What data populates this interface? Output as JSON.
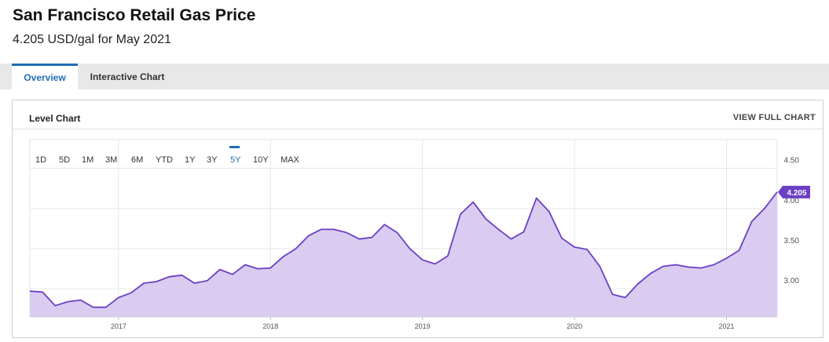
{
  "header": {
    "title": "San Francisco Retail Gas Price",
    "subtitle": "4.205 USD/gal for May 2021"
  },
  "tabs": [
    {
      "label": "Overview",
      "active": true
    },
    {
      "label": "Interactive Chart",
      "active": false
    }
  ],
  "panel": {
    "title": "Level Chart",
    "view_full": "VIEW FULL CHART"
  },
  "ranges": [
    "1D",
    "5D",
    "1M",
    "3M",
    "6M",
    "YTD",
    "1Y",
    "3Y",
    "5Y",
    "10Y",
    "MAX"
  ],
  "active_range": "5Y",
  "colors": {
    "line": "#6b3fc4",
    "fill": "#d9ccf0",
    "accent": "#1f6db3",
    "badge": "#6b3fc4"
  },
  "chart_data": {
    "type": "area",
    "x_start": "2016-06",
    "x_step": "month",
    "values": [
      2.97,
      2.96,
      2.79,
      2.84,
      2.86,
      2.77,
      2.77,
      2.89,
      2.95,
      3.07,
      3.09,
      3.15,
      3.17,
      3.07,
      3.1,
      3.24,
      3.18,
      3.3,
      3.25,
      3.26,
      3.4,
      3.5,
      3.66,
      3.74,
      3.74,
      3.7,
      3.62,
      3.64,
      3.8,
      3.7,
      3.5,
      3.36,
      3.31,
      3.41,
      3.93,
      4.08,
      3.87,
      3.74,
      3.62,
      3.71,
      4.13,
      3.96,
      3.63,
      3.52,
      3.49,
      3.28,
      2.93,
      2.89,
      3.06,
      3.19,
      3.28,
      3.3,
      3.27,
      3.26,
      3.3,
      3.38,
      3.48,
      3.84,
      4.0,
      4.205
    ],
    "x_ticks": [
      "2017",
      "2018",
      "2019",
      "2020",
      "2021"
    ],
    "x_tick_dates": [
      "2017-01",
      "2018-01",
      "2019-01",
      "2020-01",
      "2021-01"
    ],
    "y_ticks": [
      3.0,
      3.5,
      4.0,
      4.5
    ],
    "y_tick_labels": [
      "3.00",
      "3.50",
      "4.00",
      "4.50"
    ],
    "ylim": [
      2.65,
      4.78
    ],
    "last_value_label": "4.205",
    "grid": true
  }
}
